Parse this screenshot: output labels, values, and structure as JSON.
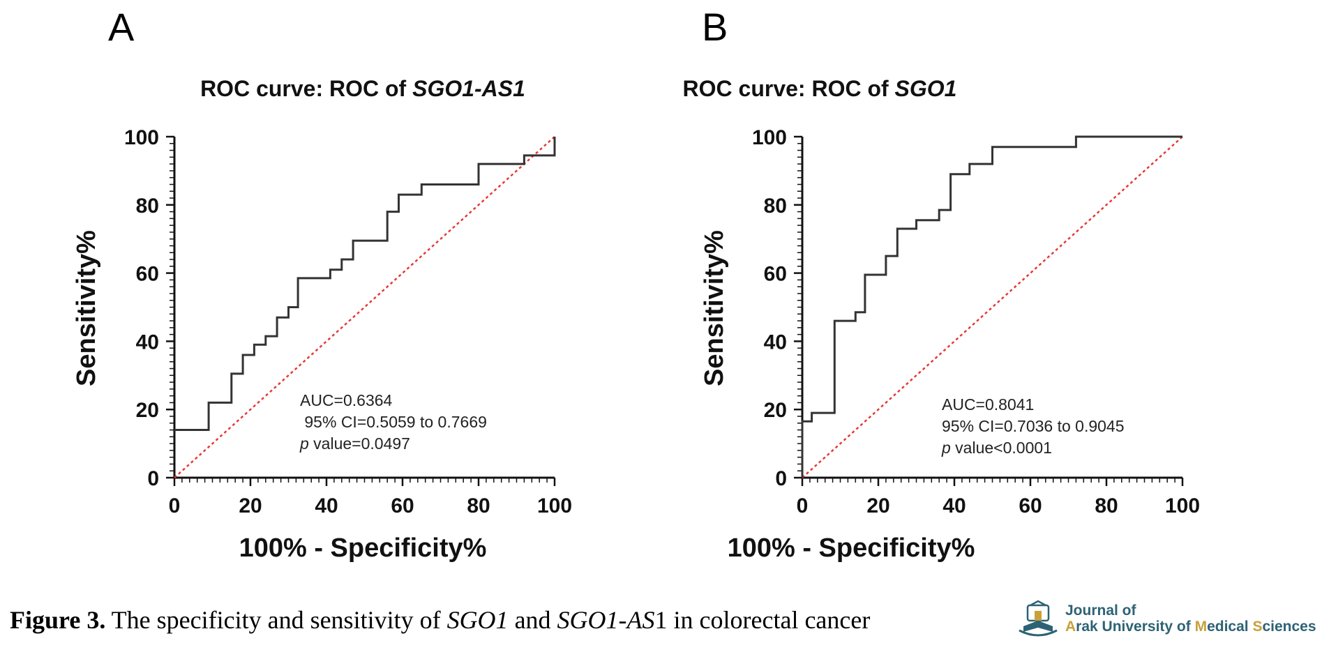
{
  "chart_data": [
    {
      "panel_label": "A",
      "type": "line",
      "title_prefix": "ROC curve: ROC of ",
      "title_gene": "SGO1-AS1",
      "xlabel": "100% - Specificity%",
      "ylabel": "Sensitivity%",
      "xlim": [
        0,
        100
      ],
      "ylim": [
        0,
        100
      ],
      "xticks": [
        0,
        20,
        40,
        60,
        80,
        100
      ],
      "yticks": [
        0,
        20,
        40,
        60,
        80,
        100
      ],
      "grid": false,
      "reference_line_color": "#e53935",
      "curve_color": "#333333",
      "series": [
        {
          "x": [
            0,
            9,
            9,
            15,
            15,
            18,
            18,
            21,
            21,
            24,
            24,
            27,
            27,
            30,
            30,
            32.5,
            32.5,
            41,
            41,
            44,
            44,
            47,
            47,
            56,
            56,
            59,
            59,
            65,
            65,
            80,
            80,
            92,
            92,
            100,
            100
          ],
          "y": [
            14,
            14,
            22,
            22,
            30.5,
            30.5,
            36,
            36,
            39,
            39,
            41.5,
            41.5,
            47,
            47,
            50,
            50,
            58.5,
            58.5,
            61,
            61,
            64,
            64,
            69.5,
            69.5,
            78,
            78,
            83,
            83,
            86,
            86,
            92,
            92,
            94.5,
            94.5,
            100
          ]
        }
      ],
      "annotation": {
        "auc": "AUC=0.6364",
        "ci": " 95% CI=0.5059 to 0.7669",
        "p_symbol": "p",
        "p_rest": " value=0.0497"
      }
    },
    {
      "panel_label": "B",
      "type": "line",
      "title_prefix": "ROC curve: ROC of ",
      "title_gene": "SGO1",
      "xlabel": "100% - Specificity%",
      "ylabel": "Sensitivity%",
      "xlim": [
        0,
        100
      ],
      "ylim": [
        0,
        100
      ],
      "xticks": [
        0,
        20,
        40,
        60,
        80,
        100
      ],
      "yticks": [
        0,
        20,
        40,
        60,
        80,
        100
      ],
      "grid": false,
      "reference_line_color": "#e53935",
      "curve_color": "#333333",
      "series": [
        {
          "x": [
            0,
            0,
            2.5,
            2.5,
            8.5,
            8.5,
            14,
            14,
            16.5,
            16.5,
            22,
            22,
            25,
            25,
            30,
            30,
            36,
            36,
            39,
            39,
            44,
            44,
            50,
            50,
            72,
            72,
            100
          ],
          "y": [
            0,
            16.5,
            16.5,
            19,
            19,
            46,
            46,
            48.5,
            48.5,
            59.5,
            59.5,
            65,
            65,
            73,
            73,
            75.5,
            75.5,
            78.5,
            78.5,
            89,
            89,
            92,
            92,
            97,
            97,
            100,
            100
          ]
        }
      ],
      "annotation": {
        "auc": "AUC=0.8041",
        "ci": "95% CI=0.7036 to 0.9045",
        "p_symbol": "p",
        "p_rest": " value<0.0001"
      }
    }
  ],
  "caption": {
    "label": "Figure 3.",
    "text1": " The specificity and sensitivity of ",
    "gene1": "SGO1",
    "text2": " and ",
    "gene2": "SGO1-AS",
    "text3": "1 in colorectal cancer"
  },
  "journal": {
    "line1": "Journal of",
    "line2_a": "A",
    "line2_b": "rak University of ",
    "line2_c": "M",
    "line2_d": "edical ",
    "line2_e": "S",
    "line2_f": "ciences",
    "colors": {
      "text": "#2d6275",
      "highlight": "#c9a13a"
    }
  }
}
